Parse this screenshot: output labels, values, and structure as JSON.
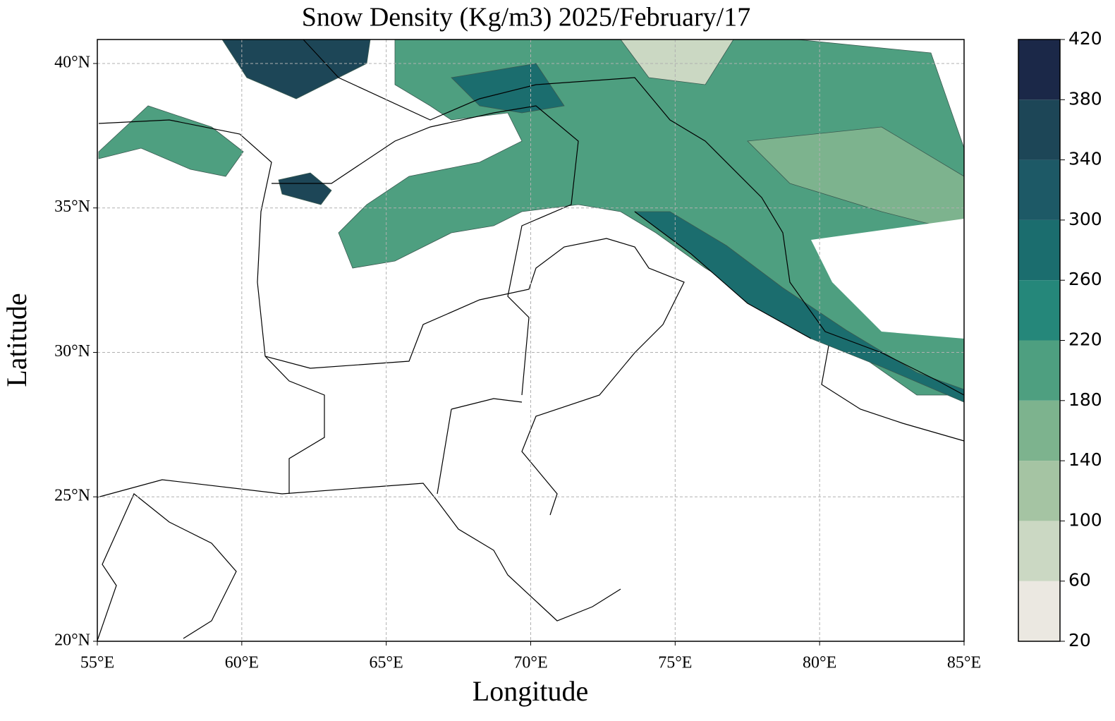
{
  "chart_data": {
    "type": "map",
    "title": "Snow Density (Kg/m3) 2025/February/17",
    "x_label": "Longitude",
    "y_label": "Latitude",
    "xlim": [
      55,
      85
    ],
    "ylim": [
      20,
      40.83
    ],
    "xticks": [
      {
        "value": 55,
        "label": "55°E"
      },
      {
        "value": 60,
        "label": "60°E"
      },
      {
        "value": 65,
        "label": "65°E"
      },
      {
        "value": 70,
        "label": "70°E"
      },
      {
        "value": 75,
        "label": "75°E"
      },
      {
        "value": 80,
        "label": "80°E"
      },
      {
        "value": 85,
        "label": "85°E"
      }
    ],
    "yticks": [
      {
        "value": 20,
        "label": "20°N"
      },
      {
        "value": 25,
        "label": "25°N"
      },
      {
        "value": 30,
        "label": "30°N"
      },
      {
        "value": 35,
        "label": "35°N"
      },
      {
        "value": 40,
        "label": "40°N"
      }
    ],
    "grid": true,
    "colorbar": {
      "levels": [
        20,
        60,
        100,
        140,
        180,
        220,
        260,
        300,
        340,
        380,
        420
      ],
      "colors": [
        "#ebe8e1",
        "#cbd8c3",
        "#a5c4a3",
        "#7db38e",
        "#4e9f80",
        "#25877a",
        "#1b6d6e",
        "#1d5966",
        "#1d4657",
        "#1b2848"
      ]
    }
  }
}
